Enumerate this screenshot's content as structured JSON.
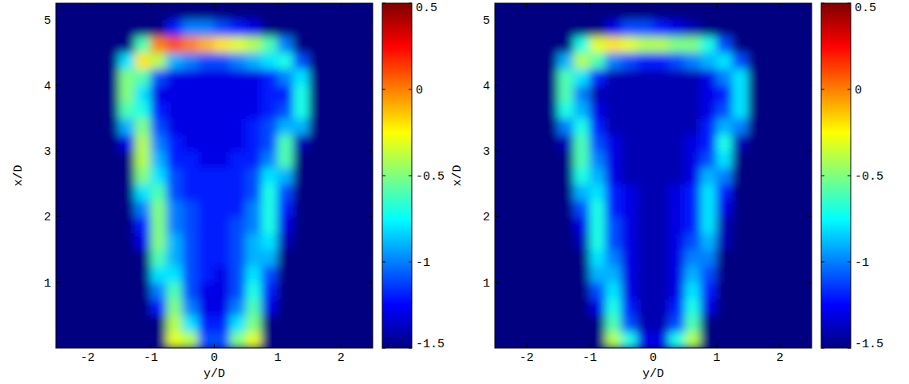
{
  "chart_data": [
    {
      "type": "heatmap",
      "x_label": "y/D",
      "y_label": "x/D",
      "xlim": [
        -2.5,
        2.5
      ],
      "ylim": [
        0,
        5.25
      ],
      "xticks": [
        -2,
        -1,
        0,
        1,
        2
      ],
      "yticks": [
        1,
        2,
        3,
        4,
        5
      ],
      "clim": [
        -1.5,
        0.5
      ],
      "cticks": [
        -1.5,
        -1,
        -0.5,
        0,
        0.5
      ],
      "x": [
        -2.375,
        -2.125,
        -1.875,
        -1.625,
        -1.375,
        -1.125,
        -0.875,
        -0.625,
        -0.375,
        -0.125,
        0.125,
        0.375,
        0.625,
        0.875,
        1.125,
        1.375,
        1.625,
        1.875,
        2.125,
        2.375
      ],
      "y": [
        0.125,
        0.375,
        0.625,
        0.875,
        1.125,
        1.375,
        1.625,
        1.875,
        2.125,
        2.375,
        2.625,
        2.875,
        3.125,
        3.375,
        3.625,
        3.875,
        4.125,
        4.375,
        4.625,
        4.875,
        5.125
      ],
      "cells": [
        [
          -1.5,
          -1.5,
          -1.5,
          -1.5,
          -1.5,
          -1.5,
          -1.5,
          -0.3,
          -0.4,
          -1.1,
          -1.1,
          -0.5,
          -0.3,
          -1.5,
          -1.5,
          -1.5,
          -1.5,
          -1.5,
          -1.5,
          -1.5
        ],
        [
          -1.5,
          -1.5,
          -1.5,
          -1.5,
          -1.5,
          -1.5,
          -1.5,
          -0.4,
          -0.8,
          -1.2,
          -1.2,
          -0.8,
          -0.5,
          -1.5,
          -1.5,
          -1.5,
          -1.5,
          -1.5,
          -1.5,
          -1.5
        ],
        [
          -1.5,
          -1.5,
          -1.5,
          -1.5,
          -1.5,
          -1.5,
          -1.2,
          -0.5,
          -1.0,
          -1.3,
          -1.3,
          -1.0,
          -0.6,
          -1.3,
          -1.5,
          -1.5,
          -1.5,
          -1.5,
          -1.5,
          -1.5
        ],
        [
          -1.5,
          -1.5,
          -1.5,
          -1.5,
          -1.5,
          -1.5,
          -1.0,
          -0.6,
          -1.1,
          -1.3,
          -1.3,
          -1.1,
          -0.7,
          -1.2,
          -1.5,
          -1.5,
          -1.5,
          -1.5,
          -1.5,
          -1.5
        ],
        [
          -1.5,
          -1.5,
          -1.5,
          -1.5,
          -1.5,
          -1.5,
          -0.8,
          -0.8,
          -1.1,
          -1.2,
          -1.3,
          -1.1,
          -0.8,
          -1.1,
          -1.5,
          -1.5,
          -1.5,
          -1.5,
          -1.5,
          -1.5
        ],
        [
          -1.5,
          -1.5,
          -1.5,
          -1.5,
          -1.5,
          -1.5,
          -0.6,
          -0.9,
          -1.1,
          -1.2,
          -1.2,
          -1.1,
          -0.9,
          -0.9,
          -1.5,
          -1.5,
          -1.5,
          -1.5,
          -1.5,
          -1.5
        ],
        [
          -1.5,
          -1.5,
          -1.5,
          -1.5,
          -1.5,
          -1.3,
          -0.5,
          -0.9,
          -1.1,
          -1.2,
          -1.2,
          -1.1,
          -0.9,
          -0.8,
          -1.4,
          -1.5,
          -1.5,
          -1.5,
          -1.5,
          -1.5
        ],
        [
          -1.5,
          -1.5,
          -1.5,
          -1.5,
          -1.5,
          -1.2,
          -0.5,
          -1.0,
          -1.1,
          -1.2,
          -1.2,
          -1.1,
          -1.0,
          -0.7,
          -1.3,
          -1.5,
          -1.5,
          -1.5,
          -1.5,
          -1.5
        ],
        [
          -1.5,
          -1.5,
          -1.5,
          -1.5,
          -1.5,
          -1.0,
          -0.5,
          -1.0,
          -1.1,
          -1.2,
          -1.2,
          -1.2,
          -1.0,
          -0.7,
          -1.2,
          -1.5,
          -1.5,
          -1.5,
          -1.5,
          -1.5
        ],
        [
          -1.5,
          -1.5,
          -1.5,
          -1.5,
          -1.5,
          -0.8,
          -0.6,
          -1.1,
          -1.2,
          -1.2,
          -1.2,
          -1.2,
          -1.1,
          -0.7,
          -1.1,
          -1.5,
          -1.5,
          -1.5,
          -1.5,
          -1.5
        ],
        [
          -1.5,
          -1.5,
          -1.5,
          -1.5,
          -1.5,
          -0.5,
          -0.8,
          -1.1,
          -1.2,
          -1.2,
          -1.2,
          -1.2,
          -1.1,
          -0.8,
          -0.9,
          -1.5,
          -1.5,
          -1.5,
          -1.5,
          -1.5
        ],
        [
          -1.5,
          -1.5,
          -1.5,
          -1.5,
          -1.5,
          -0.4,
          -0.9,
          -1.2,
          -1.2,
          -1.3,
          -1.3,
          -1.2,
          -1.2,
          -1.0,
          -0.6,
          -1.5,
          -1.5,
          -1.5,
          -1.5,
          -1.5
        ],
        [
          -1.5,
          -1.5,
          -1.5,
          -1.5,
          -1.3,
          -0.4,
          -1.0,
          -1.2,
          -1.3,
          -1.3,
          -1.3,
          -1.3,
          -1.2,
          -1.1,
          -0.6,
          -1.4,
          -1.5,
          -1.5,
          -1.5,
          -1.5
        ],
        [
          -1.5,
          -1.5,
          -1.5,
          -1.5,
          -0.9,
          -0.5,
          -1.1,
          -1.3,
          -1.3,
          -1.3,
          -1.3,
          -1.3,
          -1.2,
          -1.1,
          -0.9,
          -0.9,
          -1.5,
          -1.5,
          -1.5,
          -1.5
        ],
        [
          -1.5,
          -1.5,
          -1.5,
          -1.5,
          -0.6,
          -0.7,
          -1.2,
          -1.3,
          -1.3,
          -1.3,
          -1.3,
          -1.3,
          -1.3,
          -1.2,
          -1.1,
          -0.7,
          -1.5,
          -1.5,
          -1.5,
          -1.5
        ],
        [
          -1.5,
          -1.5,
          -1.5,
          -1.5,
          -0.5,
          -0.8,
          -1.3,
          -1.3,
          -1.3,
          -1.3,
          -1.3,
          -1.3,
          -1.3,
          -1.2,
          -1.2,
          -0.7,
          -1.5,
          -1.5,
          -1.5,
          -1.5
        ],
        [
          -1.5,
          -1.5,
          -1.5,
          -1.5,
          -0.5,
          -0.6,
          -1.1,
          -1.3,
          -1.3,
          -1.3,
          -1.3,
          -1.3,
          -1.3,
          -1.2,
          -1.0,
          -0.8,
          -1.5,
          -1.5,
          -1.5,
          -1.5
        ],
        [
          -1.5,
          -1.5,
          -1.5,
          -1.5,
          -0.8,
          -0.2,
          -0.4,
          -0.9,
          -1.0,
          -1.1,
          -1.1,
          -1.0,
          -0.9,
          -0.8,
          -0.7,
          -1.1,
          -1.5,
          -1.5,
          -1.5,
          -1.5
        ],
        [
          -1.5,
          -1.5,
          -1.5,
          -1.5,
          -1.5,
          -0.6,
          0.0,
          0.1,
          0.0,
          -0.1,
          -0.2,
          -0.3,
          -0.4,
          -0.6,
          -1.0,
          -1.5,
          -1.5,
          -1.5,
          -1.5,
          -1.5
        ],
        [
          -1.5,
          -1.5,
          -1.5,
          -1.5,
          -1.5,
          -1.5,
          -1.5,
          -1.2,
          -1.0,
          -1.0,
          -1.1,
          -1.2,
          -1.3,
          -1.5,
          -1.5,
          -1.5,
          -1.5,
          -1.5,
          -1.5,
          -1.5
        ],
        [
          -1.5,
          -1.5,
          -1.5,
          -1.5,
          -1.5,
          -1.5,
          -1.5,
          -1.5,
          -1.5,
          -1.5,
          -1.5,
          -1.5,
          -1.5,
          -1.5,
          -1.5,
          -1.5,
          -1.5,
          -1.5,
          -1.5,
          -1.5
        ]
      ]
    },
    {
      "type": "heatmap",
      "x_label": "y/D",
      "y_label": "x/D",
      "xlim": [
        -2.5,
        2.5
      ],
      "ylim": [
        0,
        5.25
      ],
      "xticks": [
        -2,
        -1,
        0,
        1,
        2
      ],
      "yticks": [
        1,
        2,
        3,
        4,
        5
      ],
      "clim": [
        -1.5,
        0.5
      ],
      "cticks": [
        -1.5,
        -1,
        -0.5,
        0,
        0.5
      ],
      "x": [
        -2.375,
        -2.125,
        -1.875,
        -1.625,
        -1.375,
        -1.125,
        -0.875,
        -0.625,
        -0.375,
        -0.125,
        0.125,
        0.375,
        0.625,
        0.875,
        1.125,
        1.375,
        1.625,
        1.875,
        2.125,
        2.375
      ],
      "y": [
        0.125,
        0.375,
        0.625,
        0.875,
        1.125,
        1.375,
        1.625,
        1.875,
        2.125,
        2.375,
        2.625,
        2.875,
        3.125,
        3.375,
        3.625,
        3.875,
        4.125,
        4.375,
        4.625,
        4.875,
        5.125
      ],
      "cells": [
        [
          -1.5,
          -1.5,
          -1.5,
          -1.5,
          -1.5,
          -1.5,
          -1.5,
          -0.4,
          -0.7,
          -1.3,
          -1.3,
          -0.7,
          -0.4,
          -1.5,
          -1.5,
          -1.5,
          -1.5,
          -1.5,
          -1.5,
          -1.5
        ],
        [
          -1.5,
          -1.5,
          -1.5,
          -1.5,
          -1.5,
          -1.5,
          -1.5,
          -0.6,
          -1.1,
          -1.4,
          -1.4,
          -1.1,
          -0.6,
          -1.5,
          -1.5,
          -1.5,
          -1.5,
          -1.5,
          -1.5,
          -1.5
        ],
        [
          -1.5,
          -1.5,
          -1.5,
          -1.5,
          -1.5,
          -1.5,
          -1.3,
          -0.7,
          -1.2,
          -1.4,
          -1.4,
          -1.2,
          -0.7,
          -1.3,
          -1.5,
          -1.5,
          -1.5,
          -1.5,
          -1.5,
          -1.5
        ],
        [
          -1.5,
          -1.5,
          -1.5,
          -1.5,
          -1.5,
          -1.5,
          -1.1,
          -0.8,
          -1.3,
          -1.4,
          -1.4,
          -1.3,
          -0.8,
          -1.2,
          -1.5,
          -1.5,
          -1.5,
          -1.5,
          -1.5,
          -1.5
        ],
        [
          -1.5,
          -1.5,
          -1.5,
          -1.5,
          -1.5,
          -1.5,
          -0.9,
          -0.9,
          -1.3,
          -1.4,
          -1.4,
          -1.3,
          -0.9,
          -1.1,
          -1.5,
          -1.5,
          -1.5,
          -1.5,
          -1.5,
          -1.5
        ],
        [
          -1.5,
          -1.5,
          -1.5,
          -1.5,
          -1.5,
          -1.5,
          -0.8,
          -1.0,
          -1.3,
          -1.4,
          -1.4,
          -1.3,
          -1.0,
          -1.0,
          -1.5,
          -1.5,
          -1.5,
          -1.5,
          -1.5,
          -1.5
        ],
        [
          -1.5,
          -1.5,
          -1.5,
          -1.5,
          -1.5,
          -1.4,
          -0.7,
          -1.1,
          -1.3,
          -1.4,
          -1.4,
          -1.3,
          -1.1,
          -0.9,
          -1.4,
          -1.5,
          -1.5,
          -1.5,
          -1.5,
          -1.5
        ],
        [
          -1.5,
          -1.5,
          -1.5,
          -1.5,
          -1.5,
          -1.3,
          -0.7,
          -1.1,
          -1.3,
          -1.4,
          -1.4,
          -1.3,
          -1.2,
          -0.8,
          -1.4,
          -1.5,
          -1.5,
          -1.5,
          -1.5,
          -1.5
        ],
        [
          -1.5,
          -1.5,
          -1.5,
          -1.5,
          -1.5,
          -1.1,
          -0.7,
          -1.2,
          -1.3,
          -1.4,
          -1.4,
          -1.3,
          -1.2,
          -0.8,
          -1.3,
          -1.5,
          -1.5,
          -1.5,
          -1.5,
          -1.5
        ],
        [
          -1.5,
          -1.5,
          -1.5,
          -1.5,
          -1.5,
          -0.9,
          -0.8,
          -1.2,
          -1.3,
          -1.4,
          -1.4,
          -1.3,
          -1.2,
          -0.8,
          -1.2,
          -1.5,
          -1.5,
          -1.5,
          -1.5,
          -1.5
        ],
        [
          -1.5,
          -1.5,
          -1.5,
          -1.5,
          -1.5,
          -0.7,
          -0.9,
          -1.3,
          -1.4,
          -1.4,
          -1.4,
          -1.4,
          -1.3,
          -0.9,
          -1.0,
          -1.5,
          -1.5,
          -1.5,
          -1.5,
          -1.5
        ],
        [
          -1.5,
          -1.5,
          -1.5,
          -1.5,
          -1.5,
          -0.6,
          -1.0,
          -1.3,
          -1.4,
          -1.4,
          -1.4,
          -1.4,
          -1.3,
          -1.1,
          -0.8,
          -1.5,
          -1.5,
          -1.5,
          -1.5,
          -1.5
        ],
        [
          -1.5,
          -1.5,
          -1.5,
          -1.5,
          -1.4,
          -0.6,
          -1.1,
          -1.3,
          -1.4,
          -1.4,
          -1.4,
          -1.4,
          -1.3,
          -1.2,
          -0.7,
          -1.4,
          -1.5,
          -1.5,
          -1.5,
          -1.5
        ],
        [
          -1.5,
          -1.5,
          -1.5,
          -1.5,
          -1.0,
          -0.7,
          -1.2,
          -1.4,
          -1.4,
          -1.4,
          -1.4,
          -1.4,
          -1.4,
          -1.2,
          -0.9,
          -1.0,
          -1.5,
          -1.5,
          -1.5,
          -1.5
        ],
        [
          -1.5,
          -1.5,
          -1.5,
          -1.5,
          -0.7,
          -0.9,
          -1.3,
          -1.4,
          -1.4,
          -1.4,
          -1.4,
          -1.4,
          -1.4,
          -1.3,
          -1.1,
          -0.8,
          -1.5,
          -1.5,
          -1.5,
          -1.5
        ],
        [
          -1.5,
          -1.5,
          -1.5,
          -1.5,
          -0.6,
          -1.0,
          -1.4,
          -1.4,
          -1.4,
          -1.4,
          -1.4,
          -1.4,
          -1.4,
          -1.3,
          -1.2,
          -0.8,
          -1.5,
          -1.5,
          -1.5,
          -1.5
        ],
        [
          -1.5,
          -1.5,
          -1.5,
          -1.5,
          -0.6,
          -0.8,
          -1.2,
          -1.4,
          -1.4,
          -1.4,
          -1.4,
          -1.4,
          -1.4,
          -1.3,
          -1.0,
          -0.8,
          -1.5,
          -1.5,
          -1.5,
          -1.5
        ],
        [
          -1.5,
          -1.5,
          -1.5,
          -1.5,
          -0.9,
          -0.4,
          -0.6,
          -1.0,
          -1.1,
          -1.2,
          -1.2,
          -1.1,
          -1.0,
          -0.9,
          -0.8,
          -1.1,
          -1.5,
          -1.5,
          -1.5,
          -1.5
        ],
        [
          -1.5,
          -1.5,
          -1.5,
          -1.5,
          -1.5,
          -0.7,
          -0.3,
          -0.2,
          -0.3,
          -0.4,
          -0.4,
          -0.5,
          -0.5,
          -0.7,
          -1.1,
          -1.5,
          -1.5,
          -1.5,
          -1.5,
          -1.5
        ],
        [
          -1.5,
          -1.5,
          -1.5,
          -1.5,
          -1.5,
          -1.5,
          -1.5,
          -1.3,
          -1.1,
          -1.1,
          -1.2,
          -1.3,
          -1.4,
          -1.5,
          -1.5,
          -1.5,
          -1.5,
          -1.5,
          -1.5,
          -1.5
        ],
        [
          -1.5,
          -1.5,
          -1.5,
          -1.5,
          -1.5,
          -1.5,
          -1.5,
          -1.5,
          -1.5,
          -1.5,
          -1.5,
          -1.5,
          -1.5,
          -1.5,
          -1.5,
          -1.5,
          -1.5,
          -1.5,
          -1.5,
          -1.5
        ]
      ]
    }
  ]
}
